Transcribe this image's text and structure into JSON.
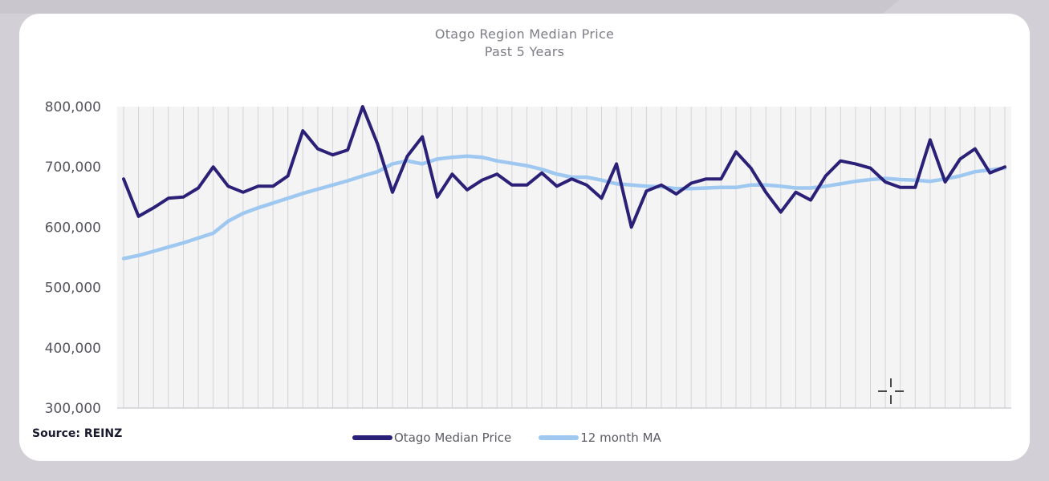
{
  "colors": {
    "page_background": "#d2d0d6",
    "card_background": "#ffffff",
    "title_text": "#7d7d88",
    "axis_text": "#55555f",
    "gridline": "#d4d4d8",
    "plot_fill": "#f4f4f5",
    "median_series": "#2b2077",
    "ma_series": "#9ec8f0"
  },
  "icons": {
    "cursor": "crosshair-cursor-icon"
  },
  "source_label": "Source: REINZ",
  "chart_data": {
    "type": "line",
    "title": "Otago Region Median Price",
    "subtitle": "Past 5 Years",
    "xlabel": "",
    "ylabel": "",
    "ylim": [
      300000,
      800000
    ],
    "yticks": [
      800000,
      700000,
      600000,
      500000,
      400000,
      300000
    ],
    "ytick_labels": [
      "800,000",
      "700,000",
      "600,000",
      "500,000",
      "400,000",
      "300,000"
    ],
    "grid": "vertical",
    "legend_position": "bottom-center",
    "x": [
      1,
      2,
      3,
      4,
      5,
      6,
      7,
      8,
      9,
      10,
      11,
      12,
      13,
      14,
      15,
      16,
      17,
      18,
      19,
      20,
      21,
      22,
      23,
      24,
      25,
      26,
      27,
      28,
      29,
      30,
      31,
      32,
      33,
      34,
      35,
      36,
      37,
      38,
      39,
      40,
      41,
      42,
      43,
      44,
      45,
      46,
      47,
      48,
      49,
      50,
      51,
      52,
      53,
      54,
      55,
      56,
      57,
      58,
      59,
      60
    ],
    "series": [
      {
        "name": "Otago Median Price",
        "color": "#2b2077",
        "values": [
          680000,
          618000,
          632000,
          648000,
          650000,
          665000,
          700000,
          668000,
          658000,
          668000,
          668000,
          685000,
          760000,
          730000,
          720000,
          728000,
          800000,
          738000,
          658000,
          718000,
          750000,
          650000,
          688000,
          662000,
          678000,
          688000,
          670000,
          670000,
          690000,
          668000,
          680000,
          670000,
          648000,
          705000,
          600000,
          660000,
          670000,
          655000,
          673000,
          680000,
          680000,
          725000,
          698000,
          658000,
          625000,
          658000,
          645000,
          685000,
          710000,
          705000,
          698000,
          675000,
          666000,
          666000,
          745000,
          675000,
          713000,
          730000,
          690000,
          700000
        ]
      },
      {
        "name": "12 month MA",
        "color": "#9ec8f0",
        "values": [
          548000,
          553000,
          560000,
          567000,
          574000,
          582000,
          590000,
          610000,
          623000,
          632000,
          640000,
          648000,
          656000,
          663000,
          670000,
          677000,
          685000,
          692000,
          705000,
          710000,
          705000,
          713000,
          716000,
          718000,
          716000,
          710000,
          706000,
          702000,
          696000,
          688000,
          683000,
          683000,
          678000,
          672000,
          670000,
          668000,
          667000,
          664000,
          664000,
          665000,
          666000,
          666000,
          670000,
          670000,
          668000,
          665000,
          665000,
          668000,
          672000,
          676000,
          679000,
          681000,
          679000,
          678000,
          676000,
          680000,
          685000,
          692000,
          695000,
          698000
        ]
      }
    ]
  }
}
